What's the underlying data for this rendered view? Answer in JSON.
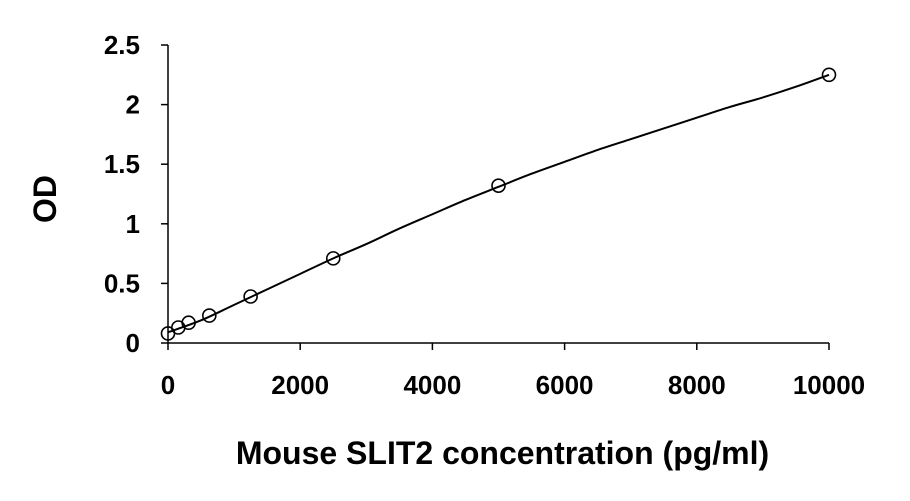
{
  "chart_data": {
    "type": "scatter",
    "title": "",
    "xlabel": "Mouse SLIT2 concentration (pg/ml)",
    "ylabel": "OD",
    "xlim": [
      0,
      10000
    ],
    "ylim": [
      0,
      2.5
    ],
    "x_ticks": [
      0,
      2000,
      4000,
      6000,
      8000,
      10000
    ],
    "x_tick_labels": [
      "0",
      "2000",
      "4000",
      "6000",
      "8000",
      "10000"
    ],
    "y_ticks": [
      0,
      0.5,
      1,
      1.5,
      2,
      2.5
    ],
    "y_tick_labels": [
      "0",
      "0.5",
      "1",
      "1.5",
      "2",
      "2.5"
    ],
    "grid": false,
    "legend": "none",
    "series": [
      {
        "marker": "open-circle",
        "x": [
          0,
          156,
          312,
          625,
          1250,
          2500,
          5000,
          10000
        ],
        "y": [
          0.08,
          0.13,
          0.17,
          0.23,
          0.39,
          0.71,
          1.32,
          2.25
        ]
      }
    ],
    "fit_curve": {
      "x": [
        0,
        500,
        1000,
        1500,
        2000,
        2500,
        3000,
        3500,
        4000,
        4500,
        5000,
        5500,
        6000,
        6500,
        7000,
        7500,
        8000,
        8500,
        9000,
        9500,
        10000
      ],
      "y": [
        0.09,
        0.19,
        0.32,
        0.45,
        0.58,
        0.71,
        0.83,
        0.96,
        1.08,
        1.2,
        1.31,
        1.42,
        1.52,
        1.62,
        1.71,
        1.8,
        1.89,
        1.98,
        2.06,
        2.15,
        2.25
      ]
    },
    "colors": {
      "axis": "#000000",
      "marker_stroke": "#000000",
      "curve": "#000000",
      "background": "#ffffff"
    }
  }
}
